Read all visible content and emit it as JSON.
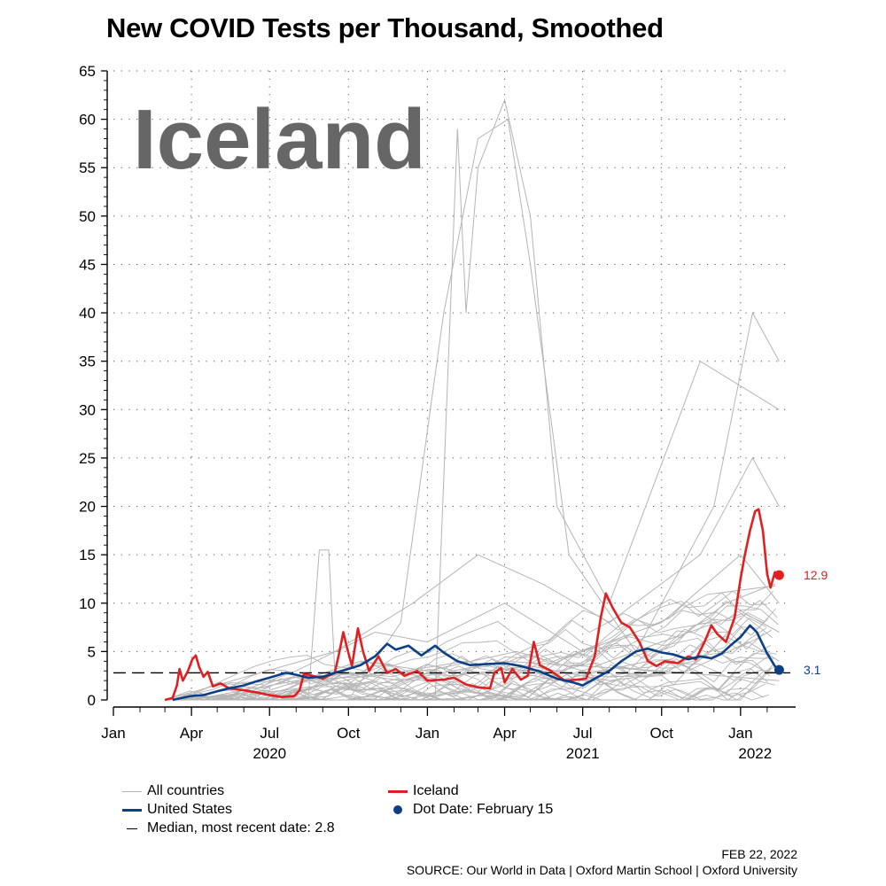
{
  "chart_data": {
    "type": "line",
    "title": "New COVID Tests per Thousand, Smoothed",
    "watermark": "Iceland",
    "xlabel": "",
    "ylabel": "",
    "ylim": [
      0,
      65
    ],
    "yticks": [
      0,
      5,
      10,
      15,
      20,
      25,
      30,
      35,
      40,
      45,
      50,
      55,
      60,
      65
    ],
    "xlim": [
      "2020-01-01",
      "2022-02-28"
    ],
    "x_month_ticks": [
      {
        "date": "2020-01-01",
        "label": "Jan"
      },
      {
        "date": "2020-04-01",
        "label": "Apr"
      },
      {
        "date": "2020-07-01",
        "label": "Jul"
      },
      {
        "date": "2020-10-01",
        "label": "Oct"
      },
      {
        "date": "2021-01-01",
        "label": "Jan"
      },
      {
        "date": "2021-04-01",
        "label": "Apr"
      },
      {
        "date": "2021-07-01",
        "label": "Jul"
      },
      {
        "date": "2021-10-01",
        "label": "Oct"
      },
      {
        "date": "2022-01-01",
        "label": "Jan"
      }
    ],
    "x_year_labels": [
      {
        "date": "2020-07-01",
        "label": "2020"
      },
      {
        "date": "2021-07-01",
        "label": "2021"
      },
      {
        "date": "2022-01-18",
        "label": "2022"
      }
    ],
    "grid": true,
    "legend_position": "bottom",
    "colors": {
      "all": "#b4b4b4",
      "iceland": "#e02020",
      "us": "#0d3f85",
      "median": "#000000"
    },
    "median": {
      "value": 2.8,
      "label": "Median, most recent date: 2.8"
    },
    "series": [
      {
        "name": "Iceland",
        "color": "#e02020",
        "points": [
          [
            "2020-03-01",
            0
          ],
          [
            "2020-03-10",
            0.2
          ],
          [
            "2020-03-15",
            1.5
          ],
          [
            "2020-03-18",
            3.2
          ],
          [
            "2020-03-22",
            2.0
          ],
          [
            "2020-03-28",
            3.0
          ],
          [
            "2020-04-02",
            4.2
          ],
          [
            "2020-04-06",
            4.6
          ],
          [
            "2020-04-10",
            3.4
          ],
          [
            "2020-04-15",
            2.4
          ],
          [
            "2020-04-20",
            2.9
          ],
          [
            "2020-04-26",
            1.4
          ],
          [
            "2020-05-05",
            1.7
          ],
          [
            "2020-05-15",
            1.2
          ],
          [
            "2020-06-01",
            1.0
          ],
          [
            "2020-06-15",
            0.8
          ],
          [
            "2020-07-01",
            0.5
          ],
          [
            "2020-07-15",
            0.3
          ],
          [
            "2020-07-30",
            0.4
          ],
          [
            "2020-08-05",
            1.0
          ],
          [
            "2020-08-10",
            2.7
          ],
          [
            "2020-08-20",
            2.5
          ],
          [
            "2020-09-01",
            2.2
          ],
          [
            "2020-09-15",
            2.8
          ],
          [
            "2020-09-20",
            4.8
          ],
          [
            "2020-09-25",
            7.0
          ],
          [
            "2020-09-29",
            5.5
          ],
          [
            "2020-10-05",
            3.5
          ],
          [
            "2020-10-12",
            7.4
          ],
          [
            "2020-10-18",
            5.0
          ],
          [
            "2020-10-25",
            3.0
          ],
          [
            "2020-11-05",
            4.5
          ],
          [
            "2020-11-15",
            2.8
          ],
          [
            "2020-11-25",
            3.2
          ],
          [
            "2020-12-05",
            2.5
          ],
          [
            "2020-12-20",
            3.0
          ],
          [
            "2021-01-01",
            2.0
          ],
          [
            "2021-01-20",
            2.1
          ],
          [
            "2021-02-01",
            2.3
          ],
          [
            "2021-02-15",
            1.6
          ],
          [
            "2021-03-01",
            1.3
          ],
          [
            "2021-03-15",
            1.2
          ],
          [
            "2021-03-20",
            2.8
          ],
          [
            "2021-03-28",
            3.3
          ],
          [
            "2021-04-01",
            1.8
          ],
          [
            "2021-04-10",
            3.2
          ],
          [
            "2021-04-20",
            2.1
          ],
          [
            "2021-04-28",
            2.5
          ],
          [
            "2021-05-05",
            6.0
          ],
          [
            "2021-05-12",
            3.6
          ],
          [
            "2021-05-25",
            3.0
          ],
          [
            "2021-06-10",
            2.0
          ],
          [
            "2021-06-25",
            2.1
          ],
          [
            "2021-07-05",
            2.2
          ],
          [
            "2021-07-15",
            4.5
          ],
          [
            "2021-07-22",
            8.5
          ],
          [
            "2021-07-28",
            11.0
          ],
          [
            "2021-08-05",
            9.5
          ],
          [
            "2021-08-15",
            8.0
          ],
          [
            "2021-08-25",
            7.5
          ],
          [
            "2021-09-05",
            6.0
          ],
          [
            "2021-09-15",
            4.0
          ],
          [
            "2021-09-25",
            3.5
          ],
          [
            "2021-10-05",
            4.0
          ],
          [
            "2021-10-20",
            3.8
          ],
          [
            "2021-11-01",
            4.5
          ],
          [
            "2021-11-10",
            4.2
          ],
          [
            "2021-11-20",
            6.0
          ],
          [
            "2021-11-28",
            7.7
          ],
          [
            "2021-12-05",
            6.8
          ],
          [
            "2021-12-15",
            6.0
          ],
          [
            "2021-12-25",
            8.5
          ],
          [
            "2022-01-01",
            12.5
          ],
          [
            "2022-01-06",
            15.0
          ],
          [
            "2022-01-12",
            17.5
          ],
          [
            "2022-01-18",
            19.5
          ],
          [
            "2022-01-22",
            19.7
          ],
          [
            "2022-01-27",
            17.5
          ],
          [
            "2022-02-01",
            13.0
          ],
          [
            "2022-02-05",
            11.6
          ],
          [
            "2022-02-10",
            13.2
          ],
          [
            "2022-02-15",
            12.9
          ]
        ]
      },
      {
        "name": "United States",
        "color": "#0d3f85",
        "points": [
          [
            "2020-03-10",
            0
          ],
          [
            "2020-03-20",
            0.2
          ],
          [
            "2020-04-01",
            0.4
          ],
          [
            "2020-04-15",
            0.5
          ],
          [
            "2020-05-01",
            0.9
          ],
          [
            "2020-05-15",
            1.2
          ],
          [
            "2020-06-01",
            1.5
          ],
          [
            "2020-06-15",
            1.9
          ],
          [
            "2020-07-01",
            2.3
          ],
          [
            "2020-07-20",
            2.8
          ],
          [
            "2020-08-01",
            2.6
          ],
          [
            "2020-08-15",
            2.3
          ],
          [
            "2020-09-01",
            2.4
          ],
          [
            "2020-09-15",
            2.8
          ],
          [
            "2020-10-01",
            3.2
          ],
          [
            "2020-10-15",
            3.6
          ],
          [
            "2020-11-01",
            4.5
          ],
          [
            "2020-11-15",
            5.8
          ],
          [
            "2020-11-25",
            5.2
          ],
          [
            "2020-12-10",
            5.6
          ],
          [
            "2020-12-25",
            4.6
          ],
          [
            "2021-01-10",
            5.6
          ],
          [
            "2021-01-20",
            4.9
          ],
          [
            "2021-02-05",
            4.0
          ],
          [
            "2021-02-20",
            3.6
          ],
          [
            "2021-03-10",
            3.7
          ],
          [
            "2021-04-01",
            3.8
          ],
          [
            "2021-04-20",
            3.5
          ],
          [
            "2021-05-10",
            3.0
          ],
          [
            "2021-06-01",
            2.2
          ],
          [
            "2021-06-20",
            1.8
          ],
          [
            "2021-07-01",
            1.5
          ],
          [
            "2021-07-15",
            2.2
          ],
          [
            "2021-08-01",
            3.0
          ],
          [
            "2021-08-15",
            4.0
          ],
          [
            "2021-09-01",
            5.0
          ],
          [
            "2021-09-15",
            5.3
          ],
          [
            "2021-10-01",
            4.9
          ],
          [
            "2021-10-15",
            4.7
          ],
          [
            "2021-11-01",
            4.2
          ],
          [
            "2021-11-15",
            4.5
          ],
          [
            "2021-11-28",
            4.3
          ],
          [
            "2021-12-10",
            4.8
          ],
          [
            "2021-12-20",
            5.6
          ],
          [
            "2022-01-01",
            6.5
          ],
          [
            "2022-01-12",
            7.7
          ],
          [
            "2022-01-20",
            7.0
          ],
          [
            "2022-02-01",
            4.8
          ],
          [
            "2022-02-10",
            3.5
          ],
          [
            "2022-02-15",
            3.1
          ]
        ]
      }
    ],
    "end_labels": [
      {
        "series": "Iceland",
        "text": "12.9",
        "color": "#e02020"
      },
      {
        "series": "United States",
        "text": "3.1",
        "color": "#0d3f85"
      }
    ]
  },
  "legend": {
    "all_countries": "All countries",
    "united_states": "United States",
    "median": "Median, most recent date: 2.8",
    "iceland": "Iceland",
    "dot_date": "Dot Date: February 15"
  },
  "footer": {
    "date": "FEB 22, 2022",
    "source": "SOURCE: Our World in Data | Oxford Martin School | Oxford University"
  }
}
